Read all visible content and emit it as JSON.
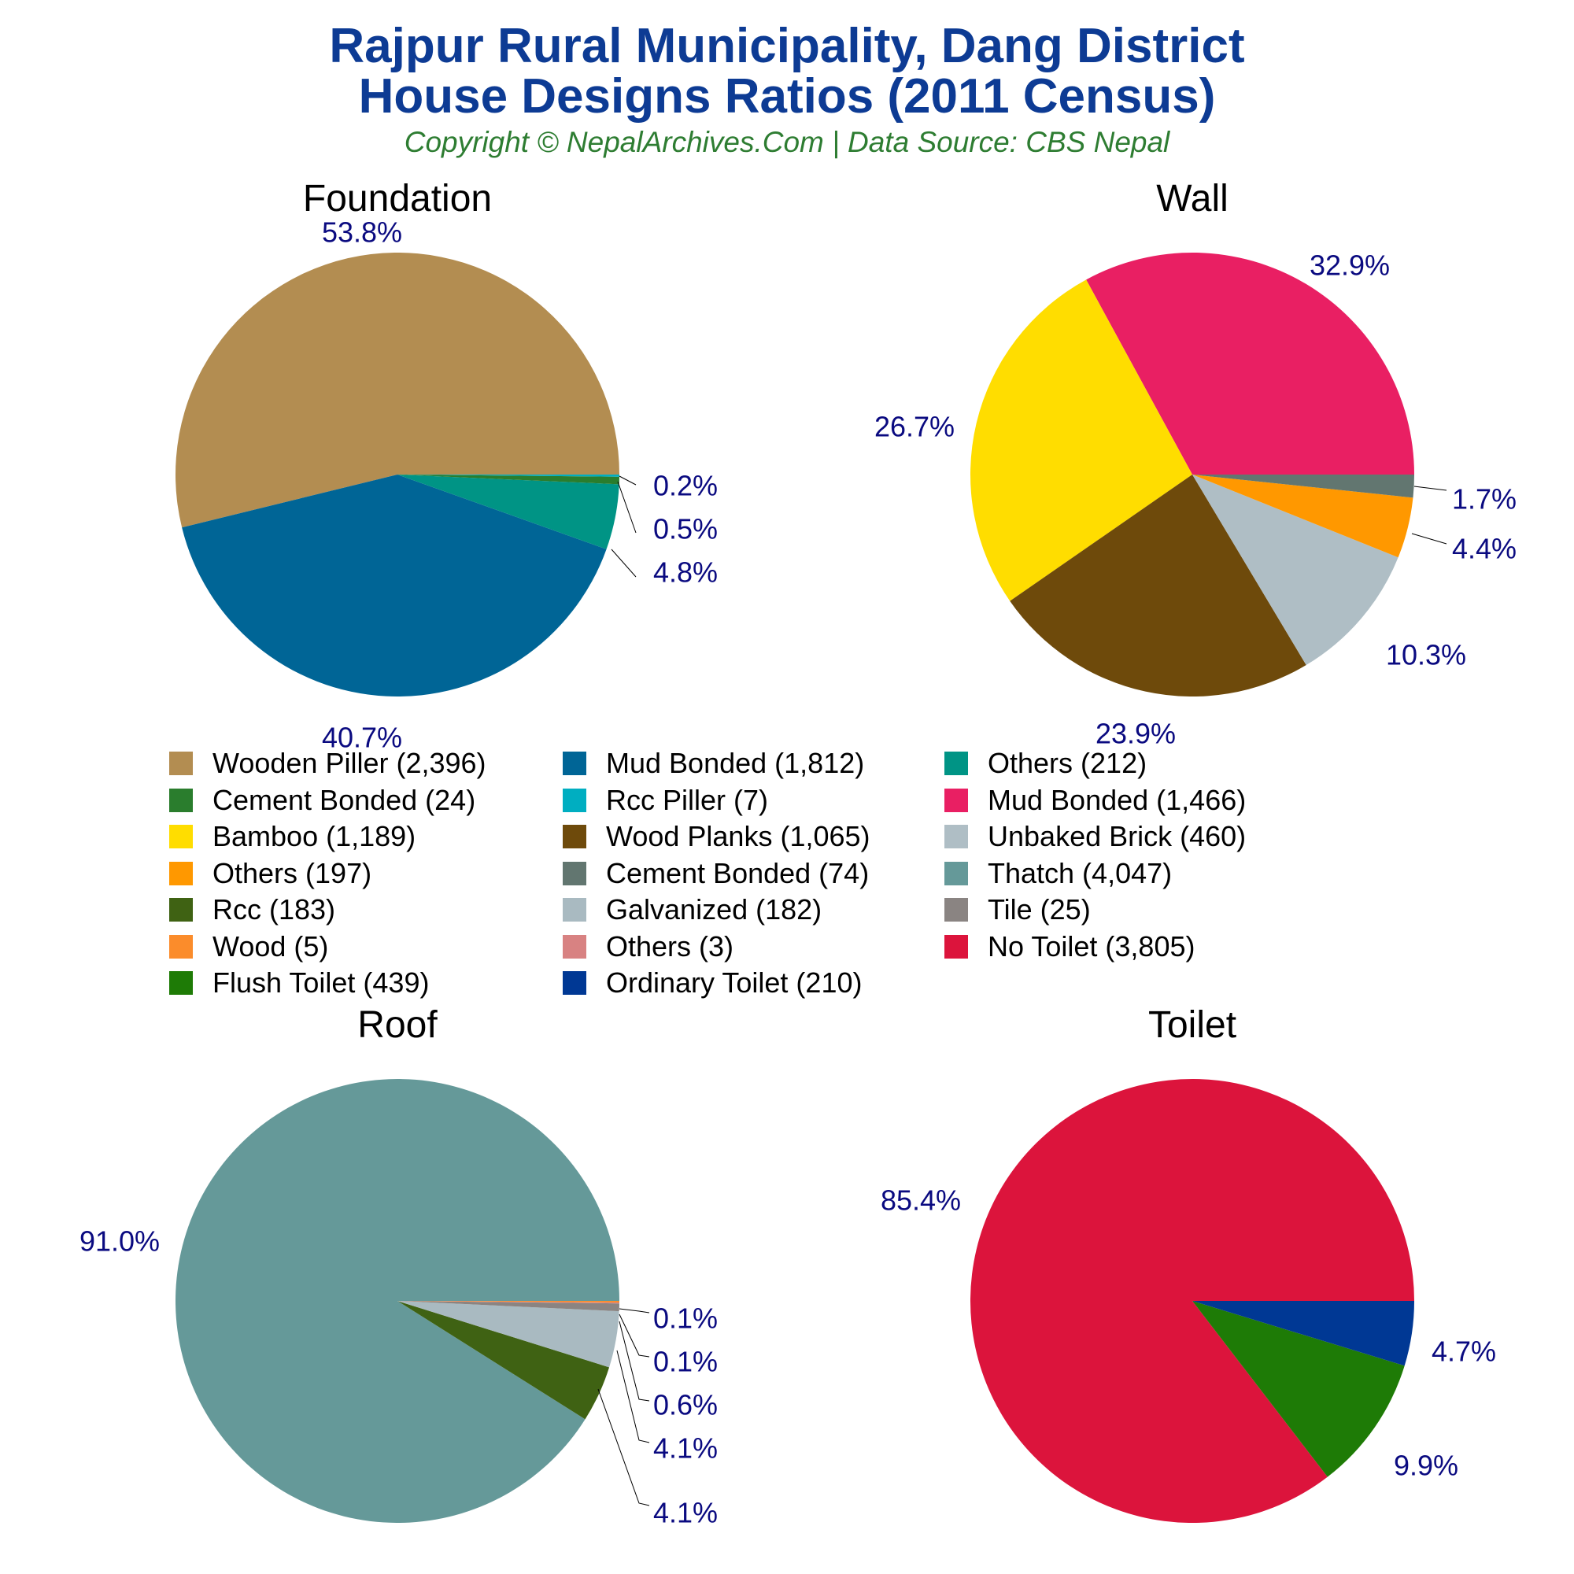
{
  "header": {
    "title_line1": "Rajpur Rural Municipality, Dang District",
    "title_line2": "House Designs Ratios (2011 Census)",
    "subtitle": "Copyright © NepalArchives.Com | Data Source: CBS Nepal"
  },
  "chart_data": [
    {
      "type": "pie",
      "title": "Foundation",
      "slices": [
        {
          "label": "Wooden Piller",
          "value": 2396,
          "percent_label": "53.8%",
          "color": "#b38d51"
        },
        {
          "label": "Mud Bonded",
          "value": 1812,
          "percent_label": "40.7%",
          "color": "#006596"
        },
        {
          "label": "Others",
          "value": 212,
          "percent_label": "4.8%",
          "color": "#009485"
        },
        {
          "label": "Cement Bonded",
          "value": 24,
          "percent_label": "0.5%",
          "color": "#2a7d2d"
        },
        {
          "label": "Rcc Piller",
          "value": 7,
          "percent_label": "0.2%",
          "color": "#00aec1"
        }
      ]
    },
    {
      "type": "pie",
      "title": "Wall",
      "slices": [
        {
          "label": "Mud Bonded",
          "value": 1466,
          "percent_label": "32.9%",
          "color": "#e91f63"
        },
        {
          "label": "Bamboo",
          "value": 1189,
          "percent_label": "26.7%",
          "color": "#ffdd00"
        },
        {
          "label": "Wood Planks",
          "value": 1065,
          "percent_label": "23.9%",
          "color": "#6e4a0b"
        },
        {
          "label": "Unbaked Brick",
          "value": 460,
          "percent_label": "10.3%",
          "color": "#afbec5"
        },
        {
          "label": "Others",
          "value": 197,
          "percent_label": "4.4%",
          "color": "#ff9800"
        },
        {
          "label": "Cement Bonded",
          "value": 74,
          "percent_label": "1.7%",
          "color": "#627670"
        }
      ]
    },
    {
      "type": "pie",
      "title": "Roof",
      "slices": [
        {
          "label": "Thatch",
          "value": 4047,
          "percent_label": "91.0%",
          "color": "#659999"
        },
        {
          "label": "Rcc",
          "value": 183,
          "percent_label": "4.1%",
          "color": "#3f6213"
        },
        {
          "label": "Galvanized",
          "value": 182,
          "percent_label": "4.1%",
          "color": "#a9bac1"
        },
        {
          "label": "Tile",
          "value": 25,
          "percent_label": "0.6%",
          "color": "#8a8482"
        },
        {
          "label": "Others",
          "value": 3,
          "percent_label": "0.1%",
          "color": "#d88282"
        },
        {
          "label": "Wood",
          "value": 5,
          "percent_label": "0.1%",
          "color": "#fb8c2b"
        }
      ]
    },
    {
      "type": "pie",
      "title": "Toilet",
      "slices": [
        {
          "label": "No Toilet",
          "value": 3805,
          "percent_label": "85.4%",
          "color": "#dc143c"
        },
        {
          "label": "Flush Toilet",
          "value": 439,
          "percent_label": "9.9%",
          "color": "#1e7b06"
        },
        {
          "label": "Ordinary Toilet",
          "value": 210,
          "percent_label": "4.7%",
          "color": "#003894"
        }
      ]
    }
  ],
  "legend": [
    {
      "label": "Wooden Piller (2,396)",
      "color": "#b38d51"
    },
    {
      "label": "Mud Bonded (1,812)",
      "color": "#006596"
    },
    {
      "label": "Others (212)",
      "color": "#009485"
    },
    {
      "label": "Cement Bonded (24)",
      "color": "#2a7d2d"
    },
    {
      "label": "Rcc Piller (7)",
      "color": "#00aec1"
    },
    {
      "label": "Mud Bonded (1,466)",
      "color": "#e91f63"
    },
    {
      "label": "Bamboo (1,189)",
      "color": "#ffdd00"
    },
    {
      "label": "Wood Planks (1,065)",
      "color": "#6e4a0b"
    },
    {
      "label": "Unbaked Brick (460)",
      "color": "#afbec5"
    },
    {
      "label": "Others (197)",
      "color": "#ff9800"
    },
    {
      "label": "Cement Bonded (74)",
      "color": "#627670"
    },
    {
      "label": "Thatch (4,047)",
      "color": "#659999"
    },
    {
      "label": "Rcc (183)",
      "color": "#3f6213"
    },
    {
      "label": "Galvanized (182)",
      "color": "#a9bac1"
    },
    {
      "label": "Tile (25)",
      "color": "#8a8482"
    },
    {
      "label": "Wood (5)",
      "color": "#fb8c2b"
    },
    {
      "label": "Others (3)",
      "color": "#d88282"
    },
    {
      "label": "No Toilet (3,805)",
      "color": "#dc143c"
    },
    {
      "label": "Flush Toilet (439)",
      "color": "#1e7b06"
    },
    {
      "label": "Ordinary Toilet (210)",
      "color": "#003894"
    }
  ],
  "label_color": "#0a0a80"
}
